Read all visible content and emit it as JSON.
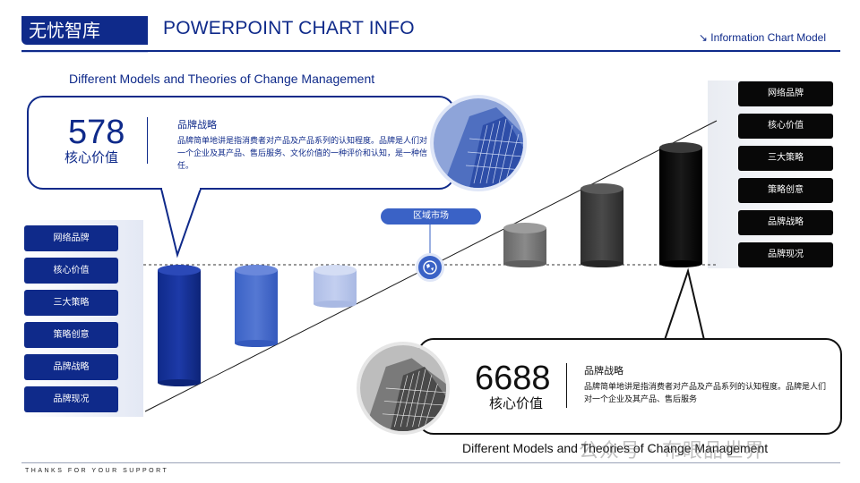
{
  "header": {
    "brand": "无忧智库",
    "title": "POWERPOINT CHART INFO",
    "right_label": "↘ Information Chart Model"
  },
  "subtitles": {
    "top": "Different Models and Theories of Change Management",
    "bottom": "Different Models and Theories of Change Management"
  },
  "left_menu": [
    "网络品牌",
    "核心价值",
    "三大策略",
    "策略创意",
    "品牌战略",
    "品牌现况"
  ],
  "right_menu": [
    "网络品牌",
    "核心价值",
    "三大策略",
    "策略创意",
    "品牌战略",
    "品牌现况"
  ],
  "card_top": {
    "number": "578",
    "label": "核心价值",
    "title": "品牌战略",
    "body": "品牌简单地讲是指消费者对产品及产品系列的认知程度。品牌是人们对一个企业及其产品、售后服务、文化价值的一种评价和认知，是一种信任。"
  },
  "card_bottom": {
    "number": "6688",
    "label": "核心价值",
    "title": "品牌战略",
    "body": "品牌简单地讲是指消费者对产品及产品系列的认知程度。品牌是人们对一个企业及其产品、售后服务"
  },
  "region_badge": "区域市场",
  "footer": "THANKS FOR YOUR SUPPORT",
  "watermark": "公众号 · 布眼品世界",
  "colors": {
    "primary": "#0f2a8a",
    "accent": "#3a62c6",
    "dark": "#080808"
  },
  "icons": {
    "globe": "globe-icon",
    "arrow": "arrow-down-right-icon"
  }
}
